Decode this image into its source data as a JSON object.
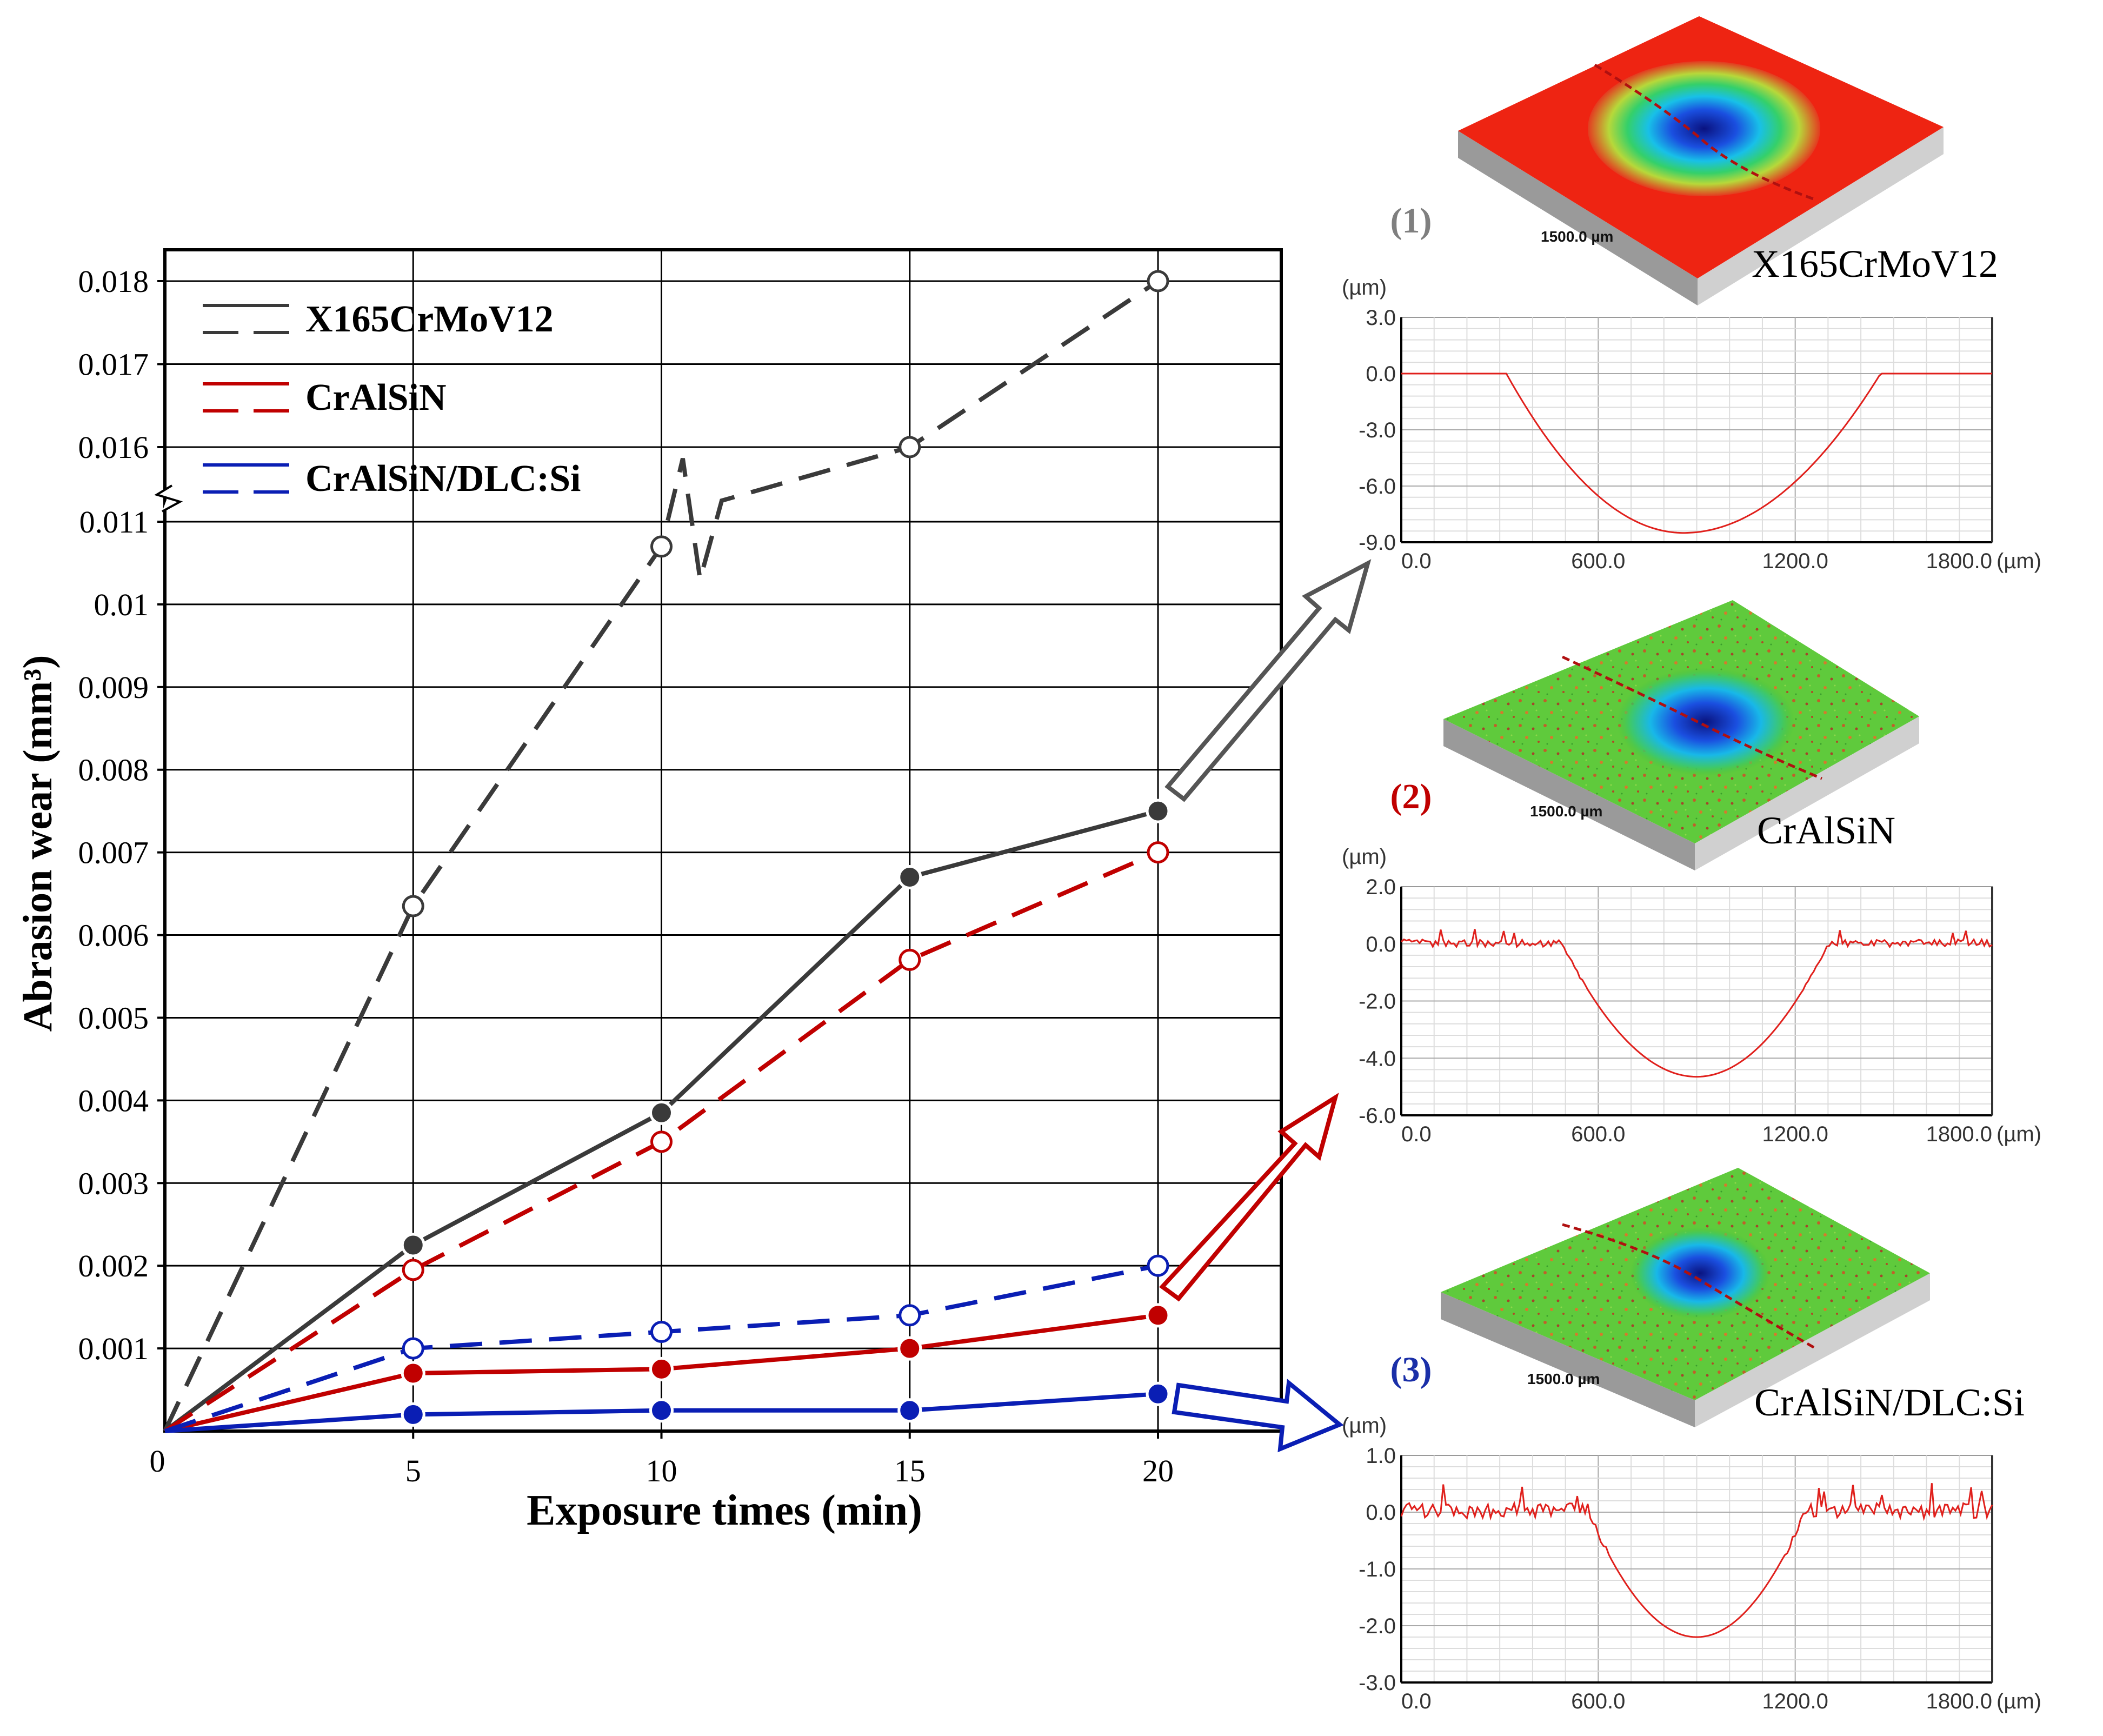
{
  "chart_data": [
    {
      "type": "line",
      "title": "",
      "xlabel": "Exposure times (min)",
      "ylabel": "Abrasion wear (mm³)",
      "x": [
        0,
        5,
        10,
        15,
        20
      ],
      "xlim": [
        0,
        22.5
      ],
      "xticks": [
        "0",
        "5",
        "10",
        "15",
        "20"
      ],
      "yticks_lower": [
        "0.001",
        "0.002",
        "0.003",
        "0.004",
        "0.005",
        "0.006",
        "0.007",
        "0.008",
        "0.009",
        "0.01",
        "0.011"
      ],
      "yticks_upper": [
        "0.016",
        "0.017",
        "0.018"
      ],
      "axis_break": "between 0.011 and 0.016",
      "legend_position": "top-left",
      "series": [
        {
          "name": "X165CrMoV12",
          "style": "solid",
          "marker": "filled",
          "color": "#3a3a3a",
          "values": [
            0,
            0.00225,
            0.00385,
            0.0067,
            0.0075
          ]
        },
        {
          "name": "X165CrMoV12",
          "style": "dashed",
          "marker": "open",
          "color": "#3a3a3a",
          "values": [
            0,
            0.00635,
            0.0107,
            0.016,
            0.018
          ]
        },
        {
          "name": "CrAlSiN",
          "style": "solid",
          "marker": "filled",
          "color": "#c00000",
          "values": [
            0,
            0.0007,
            0.00075,
            0.001,
            0.0014
          ]
        },
        {
          "name": "CrAlSiN",
          "style": "dashed",
          "marker": "open",
          "color": "#c00000",
          "values": [
            0,
            0.00195,
            0.0035,
            0.0057,
            0.007
          ]
        },
        {
          "name": "CrAlSiN/DLC:Si",
          "style": "solid",
          "marker": "filled",
          "color": "#0a1eb4",
          "values": [
            0,
            0.0002,
            0.00025,
            0.00025,
            0.00045
          ]
        },
        {
          "name": "CrAlSiN/DLC:Si",
          "style": "dashed",
          "marker": "open",
          "color": "#0a1eb4",
          "values": [
            0,
            0.001,
            0.0012,
            0.0014,
            0.002
          ]
        }
      ]
    },
    {
      "type": "line",
      "title": "X165CrMoV12",
      "number_label": "(1)",
      "number_color": "#7f7f7f",
      "image_scale_label": "1500.0 µm",
      "x_unit": "(µm)",
      "y_unit": "(µm)",
      "xlim": [
        0,
        1800
      ],
      "ylim": [
        -9,
        3
      ],
      "xticks": [
        "0.0",
        "600.0",
        "1200.0",
        "1800.0"
      ],
      "yticks": [
        "3.0",
        "0.0",
        "-3.0",
        "-6.0",
        "-9.0"
      ],
      "profile": {
        "flat_left_end": 320,
        "flat_right_start": 1460,
        "bottom_x": 860,
        "depth": -8.5,
        "noise": 0
      }
    },
    {
      "type": "line",
      "title": "CrAlSiN",
      "number_label": "(2)",
      "number_color": "#c00000",
      "image_scale_label": "1500.0 µm",
      "x_unit": "(µm)",
      "y_unit": "(µm)",
      "xlim": [
        0,
        1800
      ],
      "ylim": [
        -6,
        2
      ],
      "xticks": [
        "0.0",
        "600.0",
        "1200.0",
        "1800.0"
      ],
      "yticks": [
        "2.0",
        "0.0",
        "-2.0",
        "-4.0",
        "-6.0"
      ],
      "profile": {
        "flat_left_end": 490,
        "flat_right_start": 1300,
        "bottom_x": 900,
        "depth": -4.65,
        "noise": 0.12
      }
    },
    {
      "type": "line",
      "title": "CrAlSiN/DLC:Si",
      "number_label": "(3)",
      "number_color": "#1a2fa8",
      "image_scale_label": "1500.0 µm",
      "x_unit": "(µm)",
      "y_unit": "(µm)",
      "xlim": [
        0,
        1800
      ],
      "ylim": [
        -3,
        1
      ],
      "xticks": [
        "0.0",
        "600.0",
        "1200.0",
        "1800.0"
      ],
      "yticks": [
        "1.0",
        "0.0",
        "-1.0",
        "-2.0",
        "-3.0"
      ],
      "profile": {
        "flat_left_end": 570,
        "flat_right_start": 1230,
        "bottom_x": 900,
        "depth": -2.2,
        "noise": 0.12
      }
    }
  ]
}
